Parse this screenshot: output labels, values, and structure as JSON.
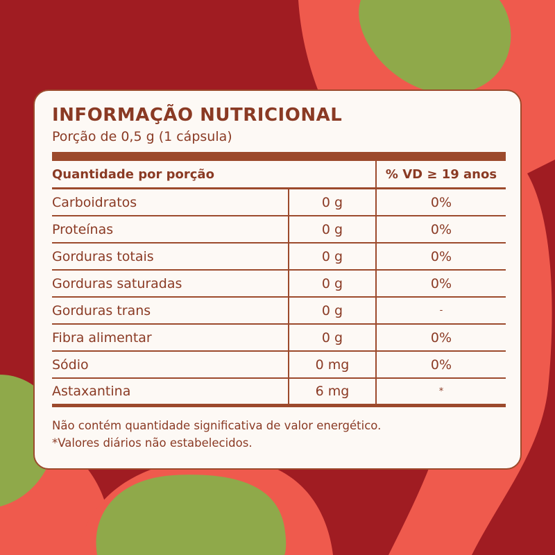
{
  "colors": {
    "background": "#a01c22",
    "coral": "#ef5a4d",
    "green": "#8fa94a",
    "card": "#fdf9f5",
    "text": "#8a3a24",
    "rule": "#9c4a2c"
  },
  "label": {
    "title": "INFORMAÇÃO NUTRICIONAL",
    "portion": "Porção de 0,5 g (1 cápsula)",
    "header": {
      "quantity": "Quantidade por porção",
      "vd": "% VD ≥ 19 anos"
    },
    "rows": [
      {
        "name": "Carboidratos",
        "amount": "0 g",
        "vd": "0%"
      },
      {
        "name": "Proteínas",
        "amount": "0 g",
        "vd": "0%"
      },
      {
        "name": "Gorduras totais",
        "amount": "0 g",
        "vd": "0%"
      },
      {
        "name": "Gorduras saturadas",
        "amount": "0 g",
        "vd": "0%"
      },
      {
        "name": "Gorduras trans",
        "amount": "0 g",
        "vd": "-"
      },
      {
        "name": "Fibra alimentar",
        "amount": "0 g",
        "vd": "0%"
      },
      {
        "name": "Sódio",
        "amount": "0 mg",
        "vd": "0%"
      },
      {
        "name": "Astaxantina",
        "amount": "6 mg",
        "vd": "*"
      }
    ],
    "footnotes": [
      "Não contém quantidade significativa de valor energético.",
      "*Valores diários não estabelecidos."
    ]
  }
}
